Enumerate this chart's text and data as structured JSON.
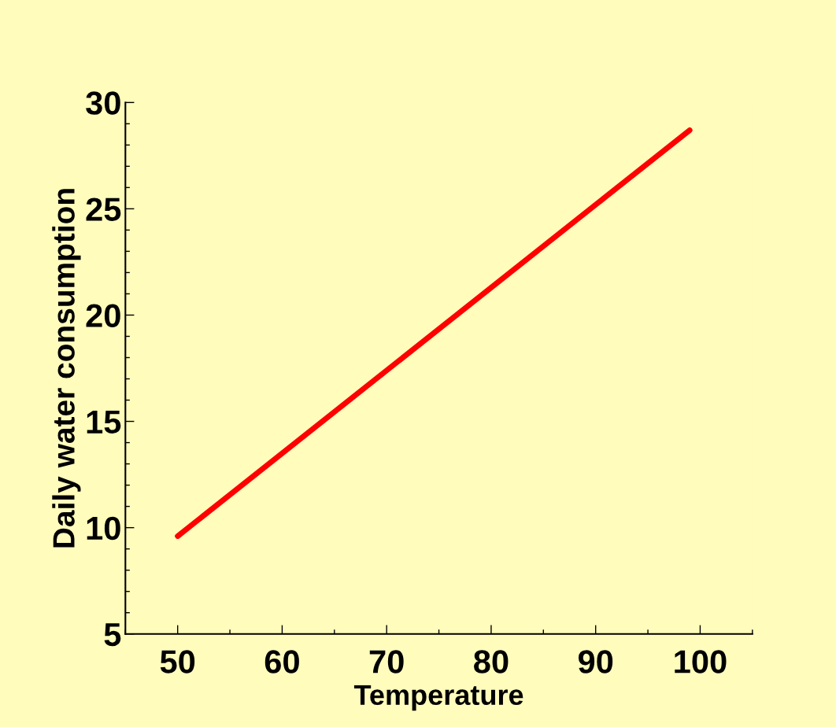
{
  "chart_data": {
    "type": "line",
    "xlabel": "Temperature",
    "ylabel": "Daily water consumption",
    "x": [
      50,
      99
    ],
    "series": [
      {
        "color": "#ff0000",
        "values": [
          9.6,
          28.7
        ]
      }
    ],
    "xlim": [
      45,
      105
    ],
    "ylim": [
      5,
      30
    ],
    "xticks": [
      50,
      60,
      70,
      80,
      90,
      100
    ],
    "yticks": [
      5,
      10,
      15,
      20,
      25,
      30
    ],
    "grid": false,
    "legend": false,
    "marker": "none",
    "line_style": "solid"
  }
}
